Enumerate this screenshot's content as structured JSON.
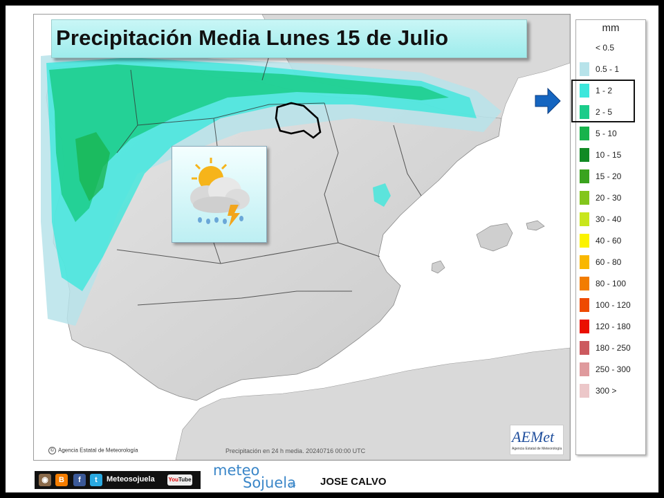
{
  "title": "Precipitación Media Lunes 15 de Julio",
  "legend": {
    "unit": "mm",
    "items": [
      {
        "label": "< 0.5",
        "color": "#ffffff"
      },
      {
        "label": "0.5 - 1",
        "color": "#b7e3ea"
      },
      {
        "label": "1 - 2",
        "color": "#3de7dc"
      },
      {
        "label": "2 - 5",
        "color": "#1bcc8a"
      },
      {
        "label": "5 - 10",
        "color": "#18b34c"
      },
      {
        "label": "10 - 15",
        "color": "#118a24"
      },
      {
        "label": "15 - 20",
        "color": "#3aa31e"
      },
      {
        "label": "20 - 30",
        "color": "#83c61c"
      },
      {
        "label": "30 - 40",
        "color": "#c8e61c"
      },
      {
        "label": "40 - 60",
        "color": "#fbf300"
      },
      {
        "label": "60 - 80",
        "color": "#f9b700"
      },
      {
        "label": "80 - 100",
        "color": "#f27c00"
      },
      {
        "label": "100 - 120",
        "color": "#ee4a00"
      },
      {
        "label": "120 - 180",
        "color": "#ea0f00"
      },
      {
        "label": "180 - 250",
        "color": "#cc5a5f"
      },
      {
        "label": "250 - 300",
        "color": "#df9a9d"
      },
      {
        "label": "300 >",
        "color": "#ecc7c9"
      }
    ],
    "highlighted": [
      "1 - 2",
      "2 - 5"
    ]
  },
  "map": {
    "credit": "Agencia Estatal de Meteorología",
    "caption": "Precipitación en 24 h media. 20240716 00:00 UTC",
    "logo_word": "AEMet",
    "logo_sub": "Agencia Estatal de Meteorología",
    "highlighted_region": "La Rioja",
    "weather_icon": "sun-cloud-thunder-rain-icon"
  },
  "footer": {
    "social_label": "Meteosojuela",
    "social_icons": [
      "instagram-icon",
      "blogger-icon",
      "facebook-icon",
      "twitter-icon"
    ],
    "youtube_label_a": "You",
    "youtube_label_b": "Tube",
    "logo_top": "meteo",
    "logo_bottom": "Sojuela",
    "logo_suffix": ".es",
    "author": "JOSE CALVO"
  }
}
